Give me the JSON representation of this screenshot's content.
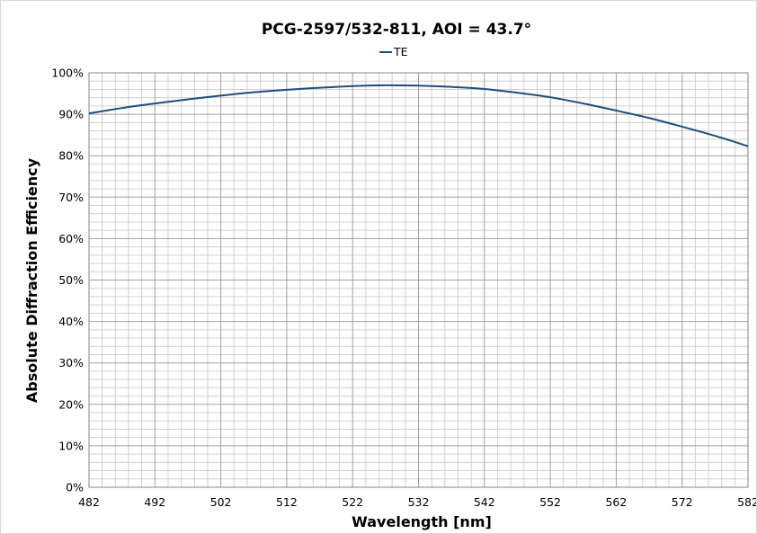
{
  "chart_data": {
    "type": "line",
    "title": "PCG-2597/532-811, AOI = 43.7°",
    "xlabel": "Wavelength [nm]",
    "ylabel": "Absolute Diffraction Efficiency",
    "xlim": [
      482,
      582
    ],
    "ylim": [
      0,
      100
    ],
    "x_ticks": [
      482,
      492,
      502,
      512,
      522,
      532,
      542,
      552,
      562,
      572,
      582
    ],
    "x_tick_labels": [
      "482",
      "492",
      "502",
      "512",
      "522",
      "532",
      "542",
      "552",
      "562",
      "572",
      "582"
    ],
    "y_ticks": [
      0,
      10,
      20,
      30,
      40,
      50,
      60,
      70,
      80,
      90,
      100
    ],
    "y_tick_labels": [
      "0%",
      "10%",
      "20%",
      "30%",
      "40%",
      "50%",
      "60%",
      "70%",
      "80%",
      "90%",
      "100%"
    ],
    "grid": true,
    "legend_position": "top-center",
    "series": [
      {
        "name": "TE",
        "color": "#1f4e79",
        "x": [
          482,
          487,
          492,
          497,
          502,
          507,
          512,
          517,
          522,
          527,
          532,
          537,
          542,
          547,
          552,
          557,
          562,
          567,
          572,
          577,
          582
        ],
        "y": [
          90.2,
          91.5,
          92.6,
          93.6,
          94.5,
          95.3,
          95.9,
          96.4,
          96.8,
          97.0,
          96.9,
          96.6,
          96.1,
          95.2,
          94.1,
          92.6,
          90.9,
          89.1,
          87.0,
          84.8,
          82.3
        ]
      }
    ]
  }
}
